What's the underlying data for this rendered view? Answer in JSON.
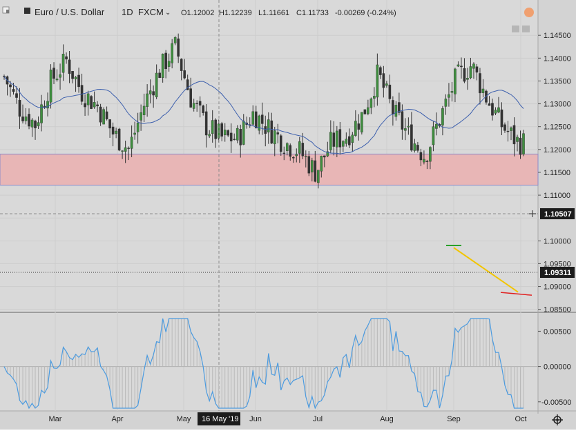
{
  "header": {
    "symbol": "Euro / U.S. Dollar",
    "interval": "1D",
    "source": "FXCM",
    "open": "O1.12002",
    "high": "H1.12239",
    "low": "L1.11661",
    "close": "C1.11733",
    "change": "-0.00269 (-0.24%)"
  },
  "price_axis": {
    "ticks": [
      "1.14500",
      "1.14000",
      "1.13500",
      "1.13000",
      "1.12500",
      "1.12000",
      "1.11500",
      "1.11000",
      "1.10000",
      "1.09500",
      "1.09000",
      "1.08500"
    ],
    "crosshair_label": "1.10507",
    "last_price_label": "1.09311"
  },
  "osc_axis": {
    "ticks": [
      "0.00500",
      "0.00000",
      "-0.00500"
    ]
  },
  "time_axis": {
    "labels": [
      "Mar",
      "Apr",
      "May",
      "Jun",
      "Jul",
      "Aug",
      "Sep",
      "Oct"
    ],
    "crosshair_label": "16 May '19"
  },
  "colors": {
    "up_candle": "#3f8f3f",
    "down_candle": "#333333",
    "ma_line": "#3c5fad",
    "zone_fill": "#e8b6b6",
    "zone_border": "#8a8ac8",
    "trend_line": "#f2c500",
    "support_mark": "#e02020",
    "entry_mark": "#2aa02a",
    "oscillator": "#4b9be0",
    "label_bg": "#1c1c1c"
  },
  "chart_data": {
    "type": "candlestick",
    "instrument": "EUR/USD",
    "timeframe": "1D",
    "x_range": [
      "2019-02-08",
      "2019-10-04"
    ],
    "price_range": [
      1.0845,
      1.1485
    ],
    "candles_approx": [
      {
        "t": 0.0,
        "o": 1.1335,
        "c": 1.136
      },
      {
        "t": 0.03,
        "o": 1.132,
        "c": 1.129
      },
      {
        "t": 0.06,
        "o": 1.129,
        "c": 1.1255
      },
      {
        "t": 0.09,
        "o": 1.132,
        "c": 1.135
      },
      {
        "t": 0.12,
        "o": 1.1375,
        "c": 1.1395
      },
      {
        "t": 0.15,
        "o": 1.1355,
        "c": 1.1325
      },
      {
        "t": 0.18,
        "o": 1.131,
        "c": 1.1295
      },
      {
        "t": 0.21,
        "o": 1.1295,
        "c": 1.1235
      },
      {
        "t": 0.24,
        "o": 1.123,
        "c": 1.12
      },
      {
        "t": 0.27,
        "o": 1.125,
        "c": 1.13
      },
      {
        "t": 0.3,
        "o": 1.134,
        "c": 1.1375
      },
      {
        "t": 0.33,
        "o": 1.139,
        "c": 1.1425
      },
      {
        "t": 0.36,
        "o": 1.135,
        "c": 1.131
      },
      {
        "t": 0.39,
        "o": 1.1295,
        "c": 1.125
      },
      {
        "t": 0.42,
        "o": 1.124,
        "c": 1.1225
      },
      {
        "t": 0.45,
        "o": 1.122,
        "c": 1.1225
      },
      {
        "t": 0.48,
        "o": 1.126,
        "c": 1.128
      },
      {
        "t": 0.51,
        "o": 1.1255,
        "c": 1.1245
      },
      {
        "t": 0.54,
        "o": 1.1225,
        "c": 1.1215
      },
      {
        "t": 0.57,
        "o": 1.1215,
        "c": 1.1195
      },
      {
        "t": 0.6,
        "o": 1.1175,
        "c": 1.115
      },
      {
        "t": 0.63,
        "o": 1.12,
        "c": 1.1215
      },
      {
        "t": 0.66,
        "o": 1.1215,
        "c": 1.123
      },
      {
        "t": 0.69,
        "o": 1.125,
        "c": 1.1275
      },
      {
        "t": 0.72,
        "o": 1.133,
        "c": 1.1365
      },
      {
        "t": 0.75,
        "o": 1.13,
        "c": 1.128
      },
      {
        "t": 0.78,
        "o": 1.126,
        "c": 1.123
      },
      {
        "t": 0.81,
        "o": 1.1215,
        "c": 1.1185
      },
      {
        "t": 0.84,
        "o": 1.12,
        "c": 1.127
      },
      {
        "t": 0.87,
        "o": 1.1305,
        "c": 1.1355
      },
      {
        "t": 0.9,
        "o": 1.14,
        "c": 1.1385
      },
      {
        "t": 0.93,
        "o": 1.137,
        "c": 1.131
      },
      {
        "t": 0.96,
        "o": 1.129,
        "c": 1.125
      },
      {
        "t": 0.99,
        "o": 1.124,
        "c": 1.1215
      }
    ],
    "resistance_zone": {
      "low": 1.1122,
      "high": 1.119
    },
    "trendline": {
      "from": 1.0985,
      "to": 1.0888
    },
    "support_level": 1.0883,
    "last_price": 1.09311,
    "oscillator": {
      "range": [
        -0.0059,
        0.0068
      ],
      "zero": 0.0
    }
  }
}
